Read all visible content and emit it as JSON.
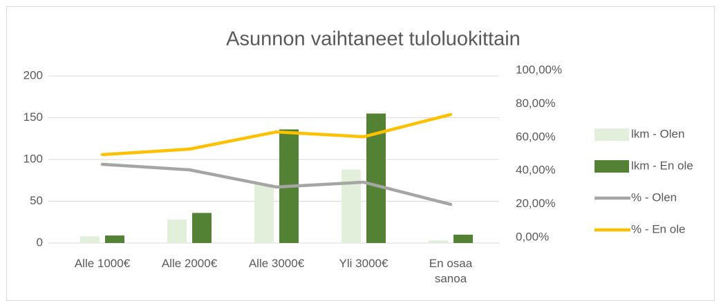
{
  "chart_data": {
    "type": "bar-line",
    "title": "Asunnon vaihtaneet tuloluokittain",
    "categories": [
      "Alle 1000€",
      "Alle 2000€",
      "Alle 3000€",
      "Yli 3000€",
      "En osaa sanoa"
    ],
    "series": [
      {
        "name": "lkm - Olen",
        "type": "bar",
        "color": "#e2efda",
        "values": [
          8,
          28,
          70,
          88,
          3
        ]
      },
      {
        "name": "lkm - En ole",
        "type": "bar",
        "color": "#548235",
        "values": [
          9,
          36,
          136,
          155,
          10
        ]
      },
      {
        "name": "% - Olen",
        "type": "line",
        "axis": "y2",
        "color": "#a5a5a5",
        "values": [
          47.1,
          43.8,
          33.5,
          36.4,
          23.1
        ]
      },
      {
        "name": "% - En ole",
        "type": "line",
        "axis": "y2",
        "color": "#ffc000",
        "values": [
          52.9,
          56.2,
          66.5,
          63.6,
          76.9
        ]
      }
    ],
    "ylim": [
      0,
      200
    ],
    "yticks": [
      0,
      50,
      100,
      150,
      200
    ],
    "y2lim": [
      0,
      100
    ],
    "y2ticks": [
      {
        "value": 0,
        "label": "0,00%"
      },
      {
        "value": 20,
        "label": "20,00%"
      },
      {
        "value": 40,
        "label": "40,00%"
      },
      {
        "value": 60,
        "label": "60,00%"
      },
      {
        "value": 80,
        "label": "80,00%"
      },
      {
        "value": 100,
        "label": "100,00%"
      }
    ],
    "grid": true,
    "legend": "right"
  }
}
